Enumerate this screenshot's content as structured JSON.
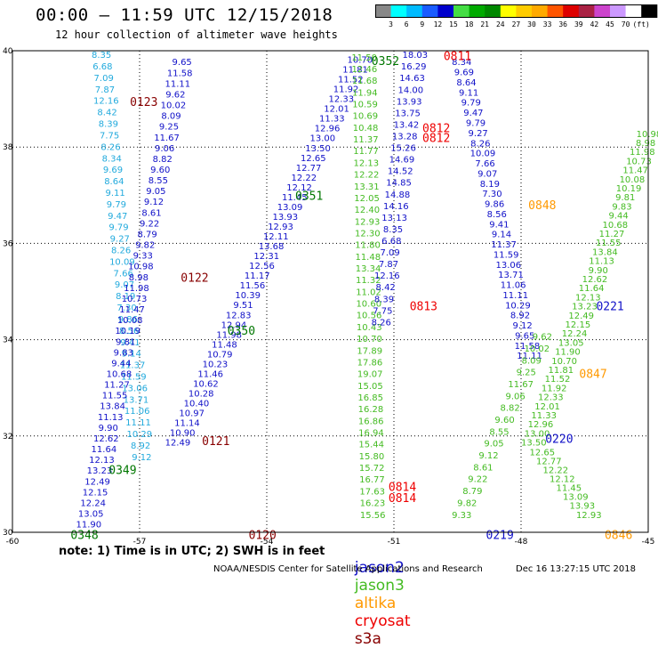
{
  "header": {
    "title": "00:00 – 11:59 UTC 12/15/2018",
    "subtitle": "12 hour collection of altimeter wave heights"
  },
  "colorbar": {
    "labels": [
      "3",
      "6",
      "9",
      "12",
      "15",
      "18",
      "21",
      "24",
      "27",
      "30",
      "33",
      "36",
      "39",
      "42",
      "45",
      "70",
      "(ft)"
    ],
    "colors": [
      "#888888",
      "#00ffff",
      "#00bbff",
      "#1a5cff",
      "#0000cc",
      "#44dd44",
      "#00aa00",
      "#008800",
      "#ffff00",
      "#ffcc00",
      "#ffaa00",
      "#ff5500",
      "#dd0000",
      "#aa2244",
      "#cc44cc",
      "#cc99ff",
      "#ffffff",
      "#000000"
    ]
  },
  "axes": {
    "x_ticks": [
      "-60",
      "-57",
      "-54",
      "-51",
      "-48",
      "-45"
    ],
    "y_ticks": [
      "40",
      "38",
      "36",
      "34",
      "32",
      "30"
    ]
  },
  "satellites": {
    "jason2": {
      "name": "jason2",
      "color": "#1010c8"
    },
    "jason3": {
      "name": "jason3",
      "color": "#44bb22"
    },
    "altika": {
      "name": "altika",
      "color": "#ff9900"
    },
    "cryosat": {
      "name": "cryosat",
      "color": "#ee0000"
    },
    "s3a": {
      "name": "s3a",
      "color": "#880000"
    }
  },
  "footer": {
    "note": "note: 1) Time is in UTC; 2) SWH is in feet",
    "credit_left": "NOAA/NESDIS Center for Satellite Applications and Research",
    "credit_right": "Dec 16 13:27:15 UTC 2018"
  },
  "map_data": {
    "track_labels": [
      {
        "text": "0123",
        "lon": -56.9,
        "lat": 38.95,
        "color": "#880000",
        "size": 13
      },
      {
        "text": "0122",
        "lon": -55.7,
        "lat": 35.3,
        "color": "#880000",
        "size": 13
      },
      {
        "text": "0121",
        "lon": -55.2,
        "lat": 31.9,
        "color": "#880000",
        "size": 13
      },
      {
        "text": "0120",
        "lon": -54.1,
        "lat": 29.95,
        "color": "#880000",
        "size": 13
      },
      {
        "text": "0352",
        "lon": -51.2,
        "lat": 39.8,
        "color": "#007700",
        "size": 13
      },
      {
        "text": "0351",
        "lon": -53.0,
        "lat": 37.0,
        "color": "#007700",
        "size": 13
      },
      {
        "text": "0350",
        "lon": -54.6,
        "lat": 34.2,
        "color": "#007700",
        "size": 13
      },
      {
        "text": "0349",
        "lon": -57.4,
        "lat": 31.3,
        "color": "#007700",
        "size": 13
      },
      {
        "text": "0348",
        "lon": -58.3,
        "lat": 29.95,
        "color": "#007700",
        "size": 13
      },
      {
        "text": "0811",
        "lon": -49.5,
        "lat": 39.9,
        "color": "#ee0000",
        "size": 13
      },
      {
        "text": "0812",
        "lon": -50.0,
        "lat": 38.4,
        "color": "#ee0000",
        "size": 13
      },
      {
        "text": "0812",
        "lon": -50.0,
        "lat": 38.2,
        "color": "#ee0000",
        "size": 13
      },
      {
        "text": "0813",
        "lon": -50.3,
        "lat": 34.7,
        "color": "#ee0000",
        "size": 13
      },
      {
        "text": "0814",
        "lon": -50.8,
        "lat": 30.95,
        "color": "#ee0000",
        "size": 13
      },
      {
        "text": "0814",
        "lon": -50.8,
        "lat": 30.72,
        "color": "#ee0000",
        "size": 13
      },
      {
        "text": "0848",
        "lon": -47.5,
        "lat": 36.8,
        "color": "#ff9900",
        "size": 13
      },
      {
        "text": "0847",
        "lon": -46.3,
        "lat": 33.3,
        "color": "#ff9900",
        "size": 13
      },
      {
        "text": "0846",
        "lon": -45.7,
        "lat": 29.95,
        "color": "#ff9900",
        "size": 13
      },
      {
        "text": "0221",
        "lon": -45.9,
        "lat": 34.7,
        "color": "#1010c8",
        "size": 13
      },
      {
        "text": "0220",
        "lon": -47.1,
        "lat": 31.95,
        "color": "#1010c8",
        "size": 13
      },
      {
        "text": "0219",
        "lon": -48.5,
        "lat": 29.95,
        "color": "#1010c8",
        "size": 13
      }
    ],
    "tracks": [
      {
        "sat": "cryosat",
        "color": "#22aadd",
        "start": [
          -57.9,
          39.85
        ],
        "end": [
          -56.95,
          31.5
        ],
        "count": 36
      },
      {
        "sat": "jason2",
        "color": "#1010c8",
        "start": [
          -56.0,
          39.7
        ],
        "end": [
          -58.2,
          30.1
        ],
        "count": 44
      },
      {
        "sat": "jason2",
        "color": "#1010c8",
        "start": [
          -51.8,
          39.75
        ],
        "end": [
          -56.1,
          31.8
        ],
        "count": 40
      },
      {
        "sat": "jason3",
        "color": "#44bb22",
        "start": [
          -51.7,
          39.8
        ],
        "end": [
          -51.5,
          30.3
        ],
        "count": 40
      },
      {
        "sat": "jason2",
        "color": "#1010c8",
        "start": [
          -50.5,
          39.85
        ],
        "end": [
          -51.3,
          34.3
        ],
        "count": 24
      },
      {
        "sat": "jason2",
        "color": "#1010c8",
        "start": [
          -49.4,
          39.7
        ],
        "end": [
          -47.8,
          33.6
        ],
        "count": 30
      },
      {
        "sat": "jason3",
        "color": "#44bb22",
        "start": [
          -47.5,
          34.0
        ],
        "end": [
          -49.4,
          30.3
        ],
        "count": 16
      },
      {
        "sat": "jason3",
        "color": "#44bb22",
        "start": [
          -44.9,
          38.4
        ],
        "end": [
          -47.7,
          31.8
        ],
        "count": 36
      },
      {
        "sat": "jason3",
        "color": "#44bb22",
        "start": [
          -47.5,
          31.6
        ],
        "end": [
          -46.4,
          30.3
        ],
        "count": 8
      }
    ],
    "value_samples": [
      "8.35",
      "6.68",
      "7.09",
      "7.87",
      "12.16",
      "8.42",
      "8.39",
      "7.75",
      "8.26",
      "8.34",
      "9.69",
      "8.64",
      "9.11",
      "9.79",
      "9.47",
      "9.79",
      "9.27",
      "8.26",
      "10.09",
      "7.66",
      "9.07",
      "8.19",
      "7.30",
      "9.86",
      "8.56",
      "9.41",
      "9.14",
      "11.37",
      "11.59",
      "13.06",
      "13.71",
      "11.06",
      "11.11",
      "10.29",
      "8.92",
      "9.12",
      "9.65",
      "11.58",
      "11.11",
      "9.62",
      "10.02",
      "8.09",
      "9.25",
      "11.67",
      "9.06",
      "8.82",
      "9.60",
      "8.55",
      "9.05",
      "9.12",
      "8.61",
      "9.22",
      "8.79",
      "9.82",
      "9.33",
      "10.98",
      "8.98",
      "11.98",
      "10.73",
      "11.47",
      "10.08",
      "10.19",
      "9.81",
      "9.83",
      "9.44",
      "10.68",
      "11.27",
      "11.55",
      "13.84",
      "11.13",
      "9.90",
      "12.62",
      "11.64",
      "12.13",
      "13.23",
      "12.49",
      "12.15",
      "12.24",
      "13.05",
      "11.90",
      "10.70",
      "11.81",
      "11.52",
      "11.92",
      "12.33",
      "12.01",
      "11.33",
      "12.96",
      "13.00",
      "13.50",
      "12.65",
      "12.77",
      "12.22",
      "12.12",
      "11.45",
      "13.09",
      "13.93",
      "12.93",
      "12.11",
      "13.68",
      "12.31",
      "12.56",
      "11.17",
      "11.56",
      "10.39",
      "9.51",
      "12.83",
      "12.94",
      "11.98",
      "11.48",
      "10.79",
      "10.23",
      "11.46",
      "10.62",
      "10.28",
      "10.40",
      "10.97",
      "11.14",
      "10.90",
      "12.49",
      "11.50",
      "12.46",
      "11.68",
      "11.94",
      "10.59",
      "10.69",
      "10.48",
      "11.37",
      "11.77",
      "12.13",
      "12.22",
      "13.31",
      "12.05",
      "12.40",
      "12.93",
      "12.30",
      "11.80",
      "11.48",
      "13.34",
      "11.32",
      "11.02",
      "10.60",
      "10.56",
      "10.43",
      "10.70",
      "17.89",
      "17.86",
      "19.07",
      "15.05",
      "16.85",
      "16.28",
      "16.86",
      "16.94",
      "15.44",
      "15.80",
      "15.72",
      "16.77",
      "17.63",
      "16.23",
      "15.56",
      "18.03",
      "16.29",
      "14.63",
      "14.00",
      "13.93",
      "13.75",
      "13.42",
      "13.28",
      "15.26",
      "14.69",
      "14.52",
      "14.85",
      "14.88",
      "14.16",
      "13.13"
    ]
  }
}
